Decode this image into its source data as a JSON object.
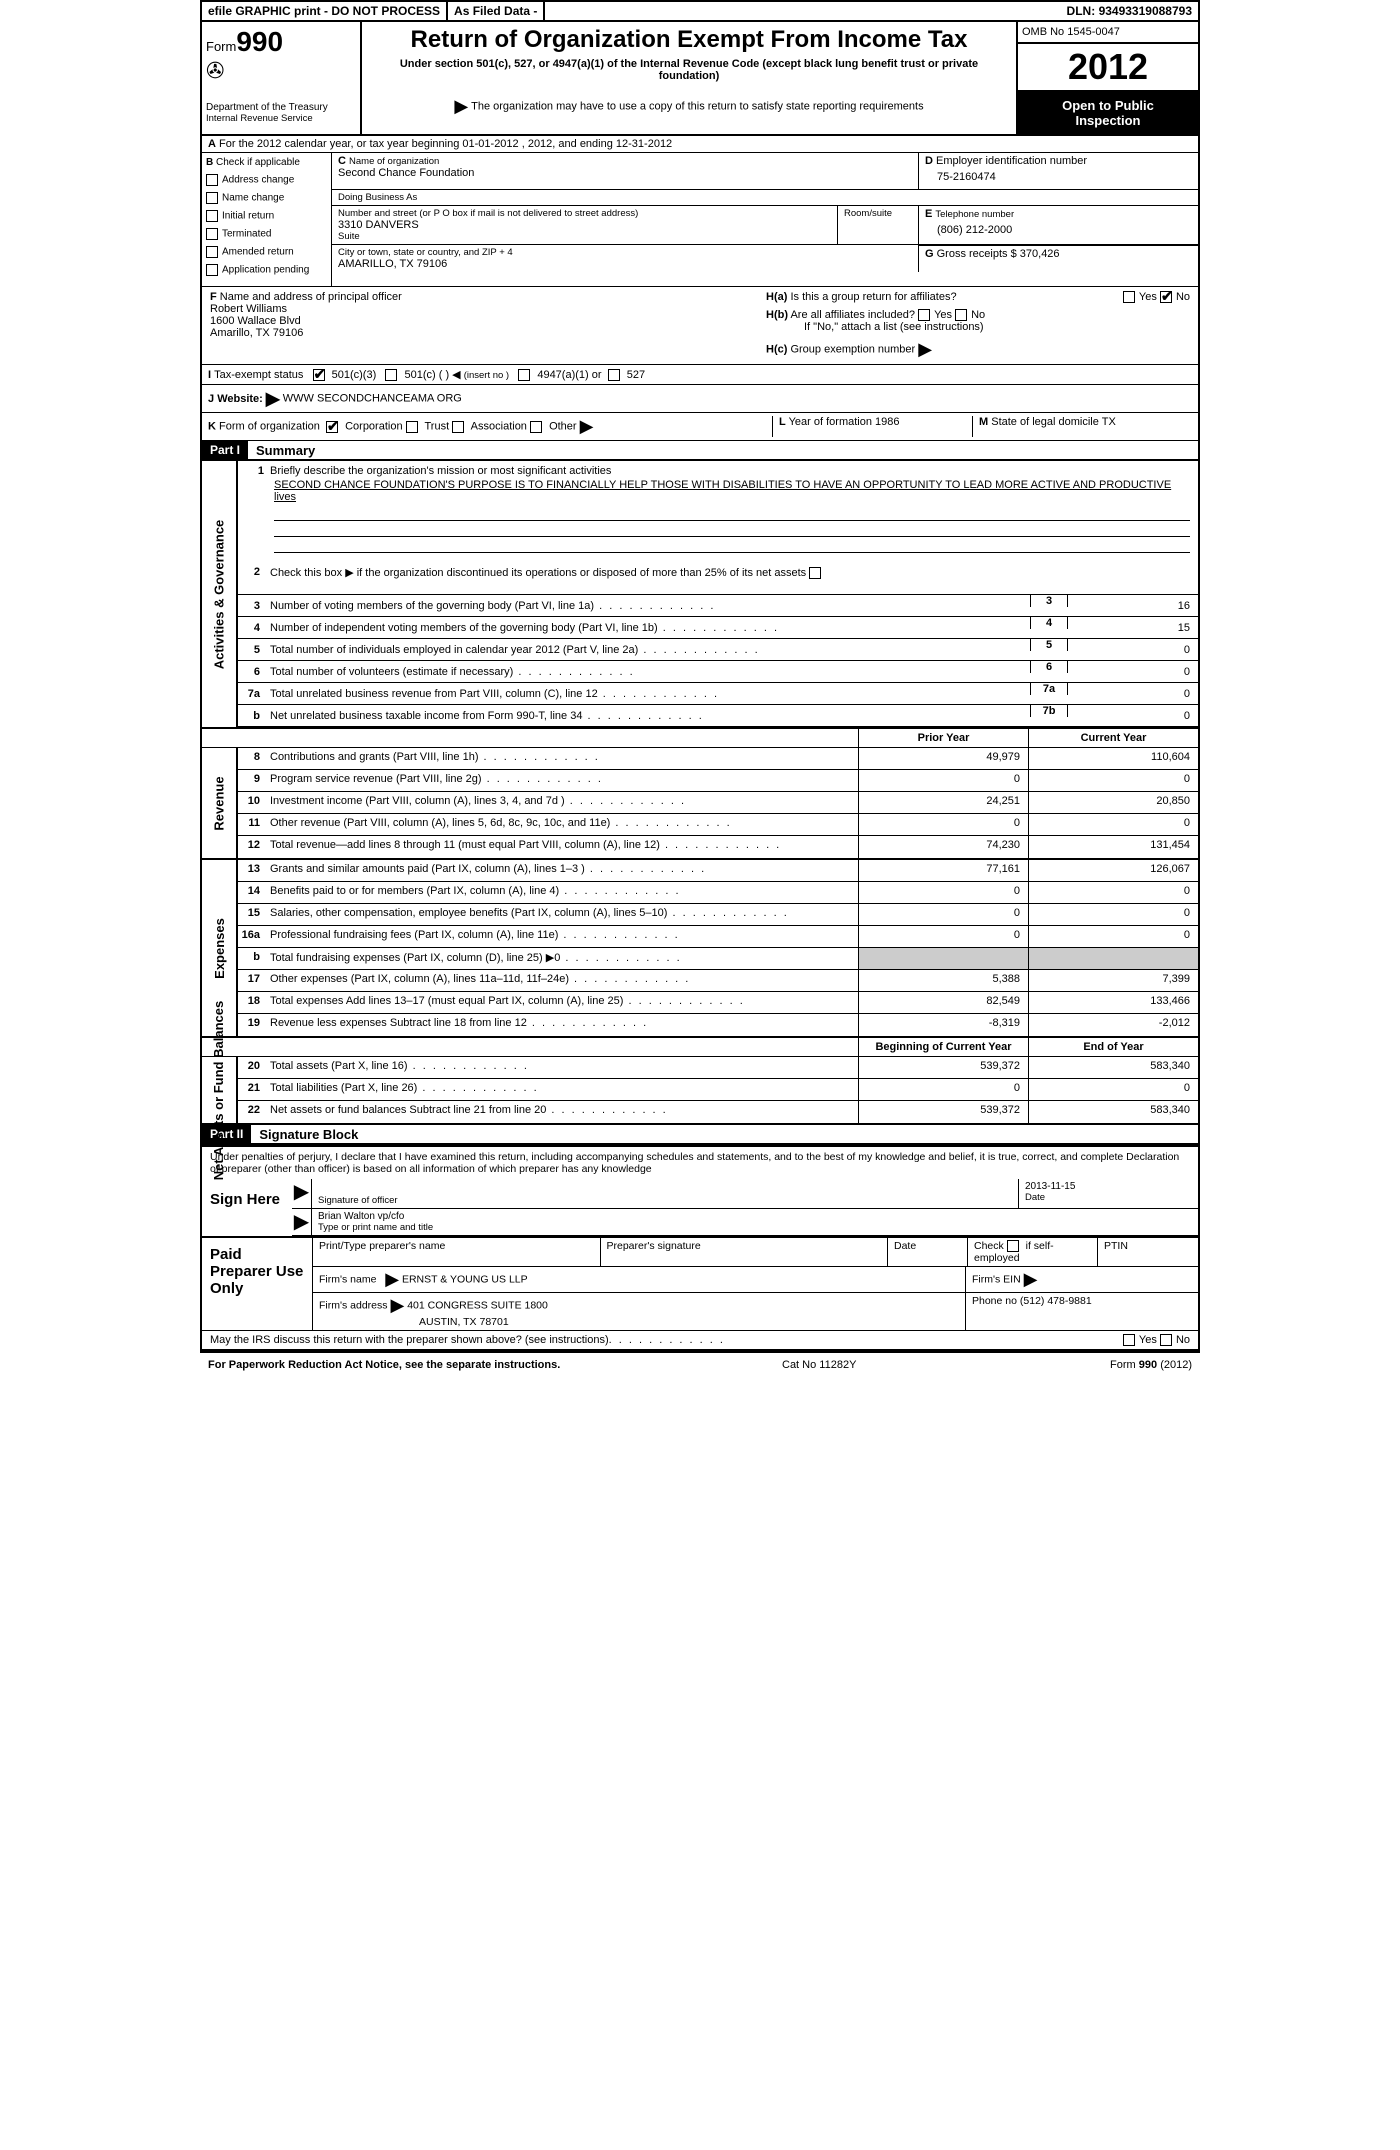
{
  "topbar": {
    "efile": "efile GRAPHIC print - DO NOT PROCESS",
    "asfiled": "As Filed Data -",
    "dln_label": "DLN:",
    "dln": "93493319088793"
  },
  "header": {
    "form_label": "Form",
    "form_num": "990",
    "dept1": "Department of the Treasury",
    "dept2": "Internal Revenue Service",
    "title": "Return of Organization Exempt From Income Tax",
    "subtitle": "Under section 501(c), 527, or 4947(a)(1) of the Internal Revenue Code (except black lung benefit trust or private foundation)",
    "note": "The organization may have to use a copy of this return to satisfy state reporting requirements",
    "omb": "OMB No 1545-0047",
    "year": "2012",
    "open1": "Open to Public",
    "open2": "Inspection"
  },
  "rowA": "For the 2012 calendar year, or tax year beginning 01-01-2012    , 2012, and ending 12-31-2012",
  "colB": {
    "label": "Check if applicable",
    "items": [
      "Address change",
      "Name change",
      "Initial return",
      "Terminated",
      "Amended return",
      "Application pending"
    ]
  },
  "colC": {
    "name_label": "Name of organization",
    "name": "Second Chance Foundation",
    "dba_label": "Doing Business As",
    "dba": "",
    "street_label": "Number and street (or P O  box if mail is not delivered to street address)",
    "room_label": "Room/suite",
    "street": "3310 DANVERS",
    "suite": "Suite",
    "city_label": "City or town, state or country, and ZIP + 4",
    "city": "AMARILLO, TX  79106"
  },
  "colD": {
    "ein_label": "Employer identification number",
    "ein": "75-2160474",
    "tel_label": "Telephone number",
    "tel": "(806) 212-2000",
    "gross_label": "Gross receipts $",
    "gross": "370,426"
  },
  "rowF": {
    "label": "Name and address of principal officer",
    "name": "Robert Williams",
    "addr1": "1600 Wallace Blvd",
    "addr2": "Amarillo, TX  79106"
  },
  "rowH": {
    "ha": "Is this a group return for affiliates?",
    "hb": "Are all affiliates included?",
    "hb_note": "If \"No,\" attach a list  (see instructions)",
    "hc": "Group exemption number",
    "yes": "Yes",
    "no": "No"
  },
  "rowI": {
    "label": "Tax-exempt status",
    "o1": "501(c)(3)",
    "o2": "501(c) (  )",
    "o2b": "(insert no )",
    "o3": "4947(a)(1) or",
    "o4": "527"
  },
  "rowJ": {
    "label": "Website:",
    "val": "WWW SECONDCHANCEAMA ORG"
  },
  "rowK": {
    "label": "Form of organization",
    "o1": "Corporation",
    "o2": "Trust",
    "o3": "Association",
    "o4": "Other",
    "year_label": "Year of formation",
    "year": "1986",
    "state_label": "State of legal domicile",
    "state": "TX"
  },
  "part1": {
    "num": "Part I",
    "title": "Summary"
  },
  "side_labels": {
    "gov": "Activities & Governance",
    "rev": "Revenue",
    "exp": "Expenses",
    "net": "Net Assets or Fund Balances"
  },
  "mission": {
    "intro": "Briefly describe the organization's mission or most significant activities",
    "text": "SECOND CHANCE FOUNDATION'S PURPOSE IS TO FINANCIALLY HELP THOSE WITH DISABILITIES TO HAVE AN OPPORTUNITY TO LEAD MORE ACTIVE AND PRODUCTIVE lives"
  },
  "line2": "Check this box ▶  if the organization discontinued its operations or disposed of more than 25% of its net assets",
  "gov_lines": [
    {
      "n": "3",
      "d": "Number of voting members of the governing body (Part VI, line 1a)",
      "box": "3",
      "v": "16"
    },
    {
      "n": "4",
      "d": "Number of independent voting members of the governing body (Part VI, line 1b)",
      "box": "4",
      "v": "15"
    },
    {
      "n": "5",
      "d": "Total number of individuals employed in calendar year 2012 (Part V, line 2a)",
      "box": "5",
      "v": "0"
    },
    {
      "n": "6",
      "d": "Total number of volunteers (estimate if necessary)",
      "box": "6",
      "v": "0"
    },
    {
      "n": "7a",
      "d": "Total unrelated business revenue from Part VIII, column (C), line 12",
      "box": "7a",
      "v": "0"
    },
    {
      "n": "b",
      "d": "Net unrelated business taxable income from Form 990-T, line 34",
      "box": "7b",
      "v": "0"
    }
  ],
  "colheads": {
    "py": "Prior Year",
    "cy": "Current Year"
  },
  "rev_lines": [
    {
      "n": "8",
      "d": "Contributions and grants (Part VIII, line 1h)",
      "py": "49,979",
      "cy": "110,604"
    },
    {
      "n": "9",
      "d": "Program service revenue (Part VIII, line 2g)",
      "py": "0",
      "cy": "0"
    },
    {
      "n": "10",
      "d": "Investment income (Part VIII, column (A), lines 3, 4, and 7d )",
      "py": "24,251",
      "cy": "20,850"
    },
    {
      "n": "11",
      "d": "Other revenue (Part VIII, column (A), lines 5, 6d, 8c, 9c, 10c, and 11e)",
      "py": "0",
      "cy": "0"
    },
    {
      "n": "12",
      "d": "Total revenue—add lines 8 through 11 (must equal Part VIII, column (A), line 12)",
      "py": "74,230",
      "cy": "131,454"
    }
  ],
  "exp_lines": [
    {
      "n": "13",
      "d": "Grants and similar amounts paid (Part IX, column (A), lines 1–3 )",
      "py": "77,161",
      "cy": "126,067"
    },
    {
      "n": "14",
      "d": "Benefits paid to or for members (Part IX, column (A), line 4)",
      "py": "0",
      "cy": "0"
    },
    {
      "n": "15",
      "d": "Salaries, other compensation, employee benefits (Part IX, column (A), lines 5–10)",
      "py": "0",
      "cy": "0"
    },
    {
      "n": "16a",
      "d": "Professional fundraising fees (Part IX, column (A), line 11e)",
      "py": "0",
      "cy": "0"
    },
    {
      "n": "b",
      "d": "Total fundraising expenses (Part IX, column (D), line 25) ▶0",
      "py": "",
      "cy": ""
    },
    {
      "n": "17",
      "d": "Other expenses (Part IX, column (A), lines 11a–11d, 11f–24e)",
      "py": "5,388",
      "cy": "7,399"
    },
    {
      "n": "18",
      "d": "Total expenses  Add lines 13–17 (must equal Part IX, column (A), line 25)",
      "py": "82,549",
      "cy": "133,466"
    },
    {
      "n": "19",
      "d": "Revenue less expenses  Subtract line 18 from line 12",
      "py": "-8,319",
      "cy": "-2,012"
    }
  ],
  "colheads2": {
    "by": "Beginning of Current Year",
    "ey": "End of Year"
  },
  "net_lines": [
    {
      "n": "20",
      "d": "Total assets (Part X, line 16)",
      "py": "539,372",
      "cy": "583,340"
    },
    {
      "n": "21",
      "d": "Total liabilities (Part X, line 26)",
      "py": "0",
      "cy": "0"
    },
    {
      "n": "22",
      "d": "Net assets or fund balances  Subtract line 21 from line 20",
      "py": "539,372",
      "cy": "583,340"
    }
  ],
  "part2": {
    "num": "Part II",
    "title": "Signature Block"
  },
  "sig_text": "Under penalties of perjury, I declare that I have examined this return, including accompanying schedules and statements, and to the best of my knowledge and belief, it is true, correct, and complete  Declaration of preparer (other than officer) is based on all information of which preparer has any knowledge",
  "sign": {
    "here": "Sign Here",
    "sig_label": "Signature of officer",
    "date_label": "Date",
    "date": "2013-11-15",
    "name": "Brian Walton vp/cfo",
    "name_label": "Type or print name and title"
  },
  "prep": {
    "label": "Paid Preparer Use Only",
    "c1": "Print/Type preparer's name",
    "c2": "Preparer's signature",
    "c3": "Date",
    "c4a": "Check",
    "c4b": "if self-employed",
    "c5": "PTIN",
    "firm_label": "Firm's name",
    "firm": "ERNST & YOUNG US LLP",
    "ein_label": "Firm's EIN",
    "addr_label": "Firm's address",
    "addr1": "401 CONGRESS SUITE 1800",
    "addr2": "AUSTIN, TX  78701",
    "phone_label": "Phone no",
    "phone": "(512) 478-9881"
  },
  "discuss": "May the IRS discuss this return with the preparer shown above? (see instructions)",
  "footer": {
    "f1": "For Paperwork Reduction Act Notice, see the separate instructions.",
    "f2": "Cat No  11282Y",
    "f3a": "Form",
    "f3b": "990",
    "f3c": "(2012)"
  }
}
